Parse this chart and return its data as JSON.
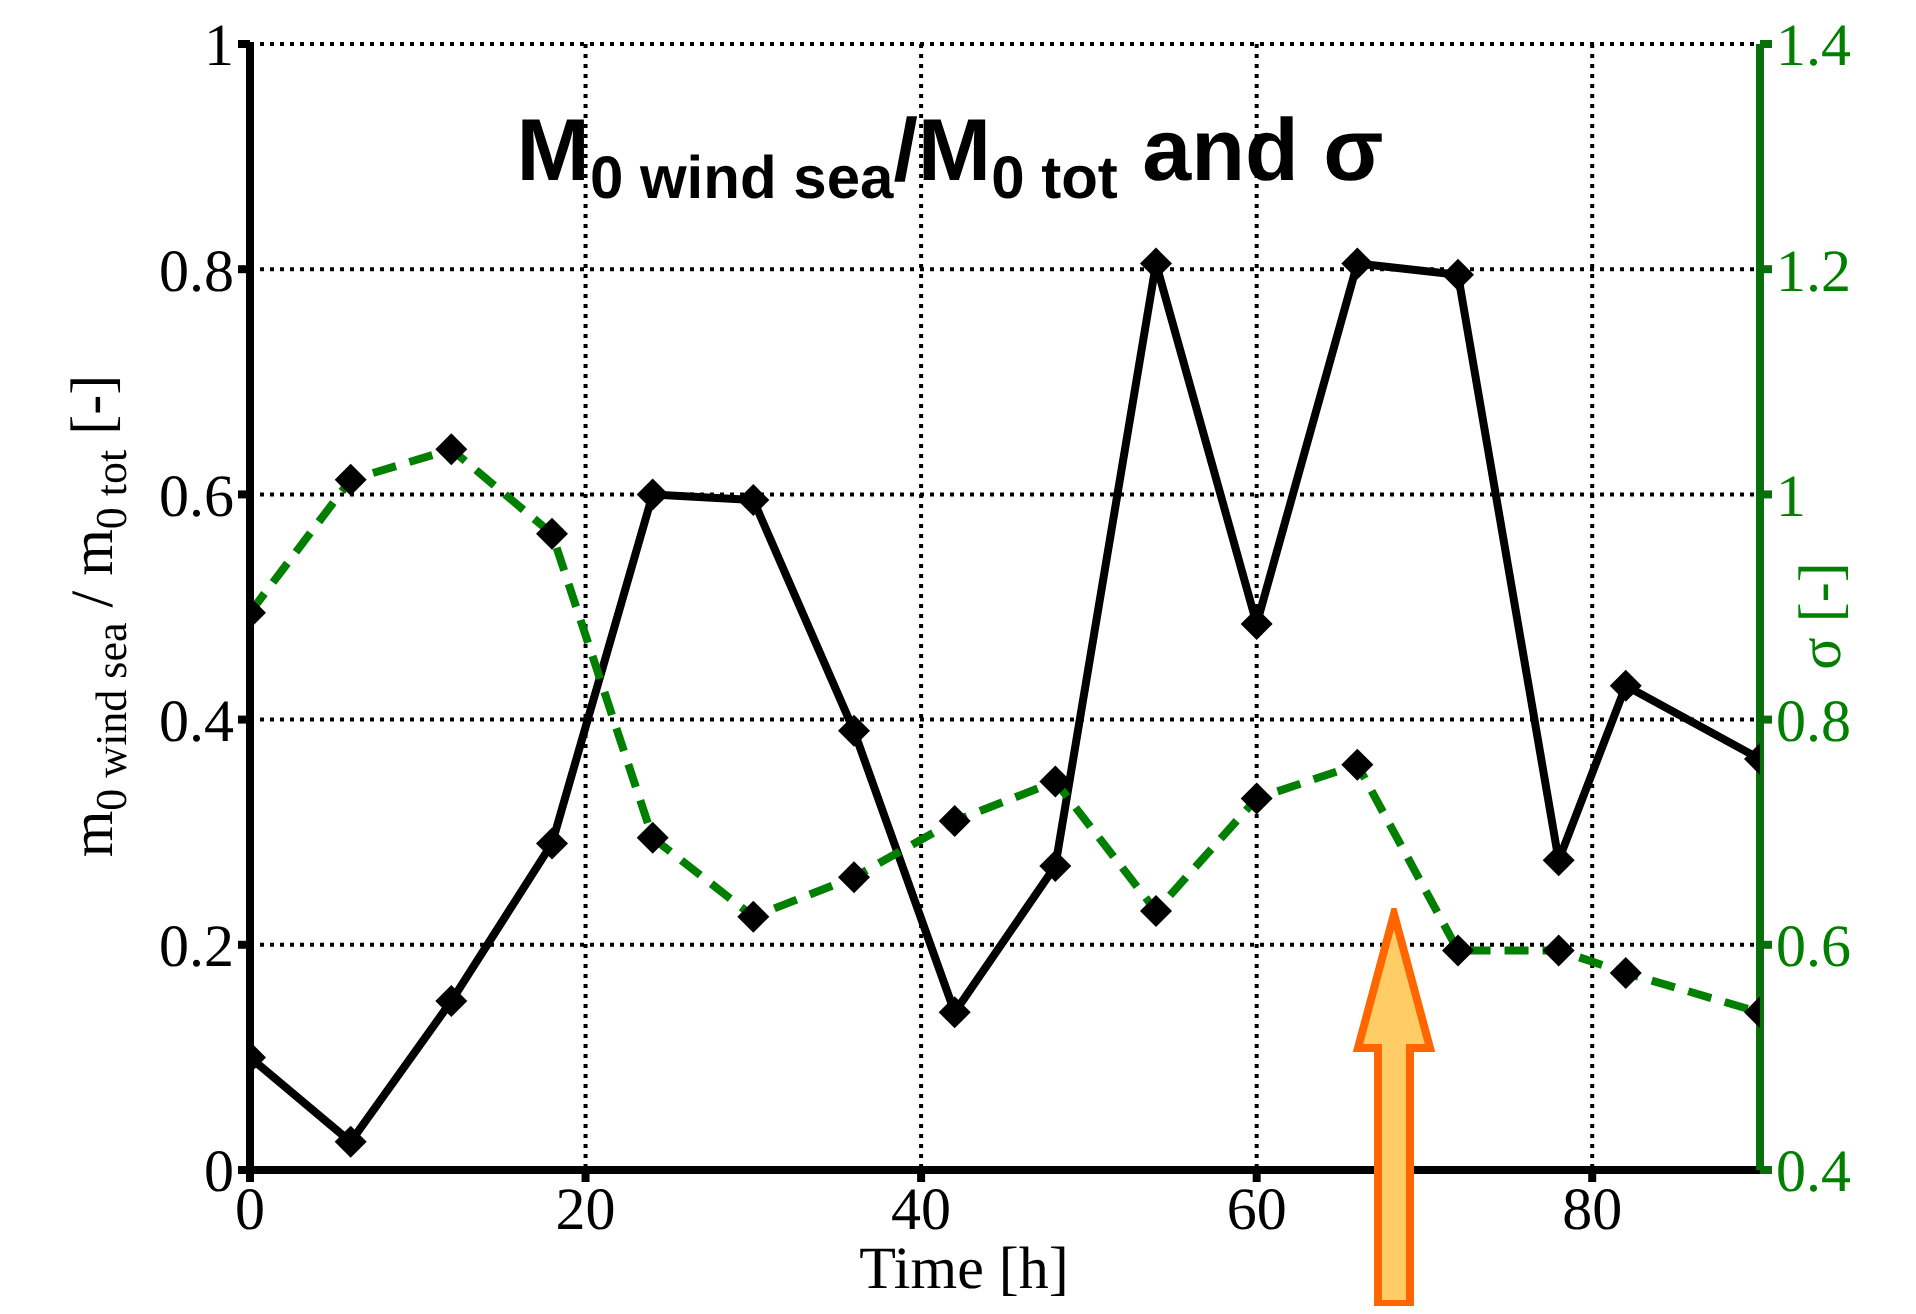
{
  "chart_data": {
    "type": "line",
    "title": "M$_{0 wind sea}$/M$_{0 tot}$  and σ",
    "xlabel": "Time [h]",
    "ylabel": "m$_{0 wind sea}$ / m$_{0 tot}$ [-]",
    "y2label": "σ [-]",
    "x": [
      0,
      6,
      12,
      18,
      24,
      30,
      36,
      42,
      48,
      54,
      60,
      66,
      72,
      78,
      82,
      90
    ],
    "series": [
      {
        "color": "#000000",
        "line_style": "solid",
        "values": [
          0.1,
          0.025,
          0.15,
          0.29,
          0.6,
          0.595,
          0.39,
          0.14,
          0.27,
          0.805,
          0.485,
          0.805,
          0.795,
          0.275,
          0.43,
          0.365
        ]
      },
      {
        "color": "#007f00",
        "line_style": "dashed",
        "axis": "y2",
        "values": [
          0.895,
          1.013,
          1.04,
          0.965,
          0.695,
          0.625,
          0.66,
          0.71,
          0.745,
          0.63,
          0.73,
          0.76,
          0.595,
          0.595,
          0.575,
          0.54
        ]
      }
    ],
    "xlim": [
      0,
      90
    ],
    "xticks": [
      0,
      20,
      40,
      60,
      80
    ],
    "ylim": [
      0,
      1
    ],
    "yticks": [
      0,
      0.2,
      0.4,
      0.6,
      0.8,
      1
    ],
    "y2lim": [
      0.4,
      1.4
    ],
    "y2ticks": [
      0.4,
      0.6,
      0.8,
      1,
      1.2,
      1.4
    ],
    "grid": true,
    "marker": "diamond",
    "legend": false
  }
}
